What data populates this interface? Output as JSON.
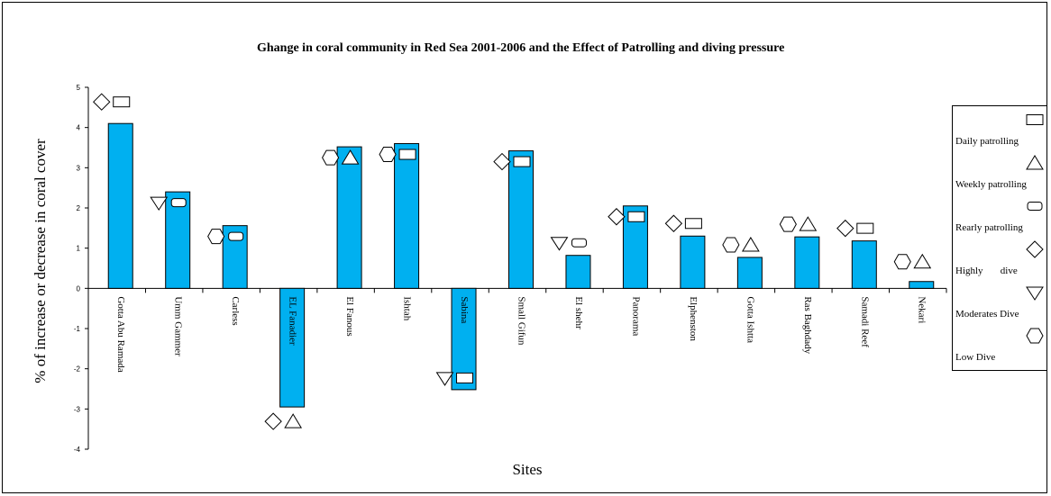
{
  "chart_data": {
    "type": "bar",
    "title": "Ghange in  coral community   in Red Sea 2001-2006 and the Effect of Patrolling and diving pressure",
    "xlabel": "Sites",
    "ylabel": "% of increase or decrease in coral cover",
    "ylim": [
      -4,
      5
    ],
    "yticks": [
      "5",
      "4",
      "3",
      "2",
      "1",
      "0",
      "-1",
      "-2",
      "-3",
      "-4"
    ],
    "bar_color": "#00b0f0",
    "grid": false,
    "legend_position": "right",
    "categories": [
      "Gotta Abu Ramada",
      "Umm Gammer",
      "Carless",
      "EL Fanadier",
      "El Fanous",
      "Ishtah",
      "Sabina",
      "Small Gifun",
      "El shehr",
      "Panorama",
      "Elphenston",
      "Gotta Ishtta",
      "Ras Baghdady",
      "Samadi Reef",
      "Nekari"
    ],
    "values": [
      4.1,
      2.4,
      1.56,
      -2.95,
      3.52,
      3.6,
      -2.52,
      3.42,
      0.82,
      2.05,
      1.3,
      0.77,
      1.28,
      1.18,
      0.17
    ],
    "markers": [
      {
        "site": "Gotta Abu Ramada",
        "dive": "Highly dive",
        "patrolling": "Daily patrolling"
      },
      {
        "site": "Umm Gammer",
        "dive": "Moderates Dive",
        "patrolling": "Rearly patrolling"
      },
      {
        "site": "Carless",
        "dive": "Low Dive",
        "patrolling": "Rearly patrolling"
      },
      {
        "site": "EL Fanadier",
        "dive": "Highly dive",
        "patrolling": "Weekly patrolling"
      },
      {
        "site": "El Fanous",
        "dive": "Low Dive",
        "patrolling": "Weekly patrolling"
      },
      {
        "site": "Ishtah",
        "dive": "Low Dive",
        "patrolling": "Daily patrolling"
      },
      {
        "site": "Sabina",
        "dive": "Moderates Dive",
        "patrolling": "Daily patrolling"
      },
      {
        "site": "Small Gifun",
        "dive": "Highly dive",
        "patrolling": "Daily patrolling"
      },
      {
        "site": "El shehr",
        "dive": "Moderates Dive",
        "patrolling": "Rearly patrolling"
      },
      {
        "site": "Panorama",
        "dive": "Highly dive",
        "patrolling": "Daily patrolling"
      },
      {
        "site": "Elphenston",
        "dive": "Highly dive",
        "patrolling": "Daily patrolling"
      },
      {
        "site": "Gotta Ishtta",
        "dive": "Low Dive",
        "patrolling": "Weekly patrolling"
      },
      {
        "site": "Ras Baghdady",
        "dive": "Low Dive",
        "patrolling": "Weekly patrolling"
      },
      {
        "site": "Samadi Reef",
        "dive": "Highly dive",
        "patrolling": "Daily patrolling"
      },
      {
        "site": "Nekari",
        "dive": "Low Dive",
        "patrolling": "Weekly patrolling"
      }
    ],
    "legend": [
      {
        "label": "Daily patrolling",
        "symbol": "rect"
      },
      {
        "label": "Weekly patrolling",
        "symbol": "triangle"
      },
      {
        "label": "Rearly patrolling",
        "symbol": "roundrect"
      },
      {
        "label": "Highly       dive",
        "symbol": "diamond"
      },
      {
        "label": "Moderates Dive",
        "symbol": "invtriangle"
      },
      {
        "label": "Low Dive",
        "symbol": "hexagon"
      }
    ]
  }
}
